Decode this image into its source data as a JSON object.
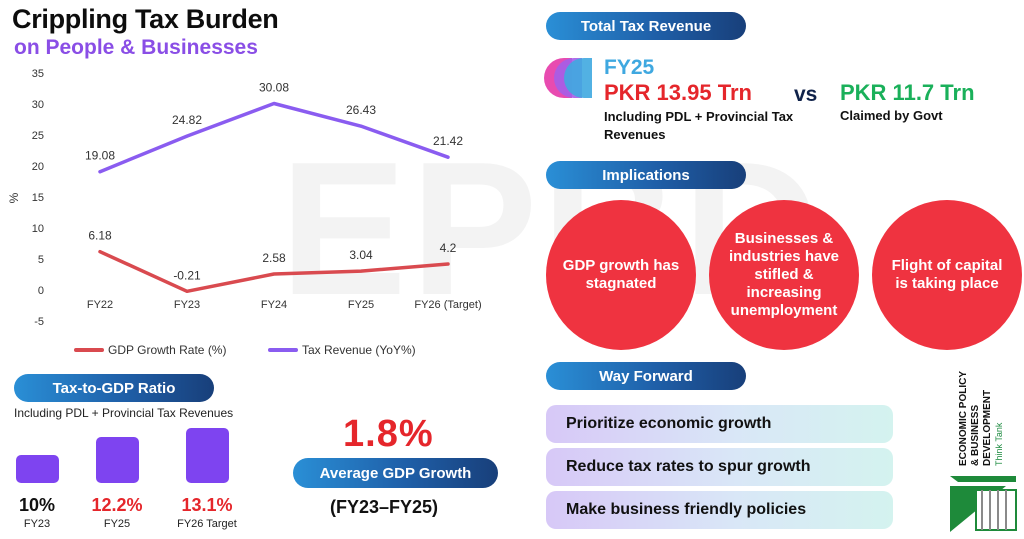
{
  "header": {
    "title": "Crippling Tax Burden",
    "subtitle": "on People & Businesses"
  },
  "watermark": "EPBD",
  "chart_data": {
    "type": "line",
    "categories": [
      "FY22",
      "FY23",
      "FY24",
      "FY25",
      "FY26 (Target)"
    ],
    "series": [
      {
        "name": "GDP Growth Rate (%)",
        "color": "#d94a4f",
        "values": [
          6.18,
          -0.21,
          2.58,
          3.04,
          4.2
        ],
        "labels": [
          "6.18",
          "-0.21",
          "2.58",
          "3.04",
          "4.2"
        ]
      },
      {
        "name": "Tax Revenue (YoY%)",
        "color": "#8a5cf0",
        "values": [
          19.08,
          24.82,
          30.08,
          26.43,
          21.42
        ],
        "labels": [
          "19.08",
          "24.82",
          "30.08",
          "26.43",
          "21.42"
        ]
      }
    ],
    "ylabel": "%",
    "ylim": [
      -5,
      35
    ],
    "yticks": [
      35,
      30,
      25,
      20,
      15,
      10,
      5,
      0,
      -5
    ],
    "legend": "bottom"
  },
  "tax_to_gdp": {
    "title": "Tax-to-GDP Ratio",
    "note": "Including PDL + Provincial Tax Revenues",
    "items": [
      {
        "value": "10%",
        "ratio": 10,
        "label": "FY23",
        "color": "#111111"
      },
      {
        "value": "12.2%",
        "ratio": 12.2,
        "label": "FY25",
        "color": "#e5262b"
      },
      {
        "value": "13.1%",
        "ratio": 13.1,
        "label": "FY26 Target",
        "color": "#e5262b"
      }
    ]
  },
  "avg_growth": {
    "value": "1.8%",
    "label": "Average GDP Growth",
    "period": "(FY23–FY25)"
  },
  "total_revenue": {
    "title": "Total Tax Revenue",
    "fy": "FY25",
    "amount": "PKR 13.95 Trn",
    "note": "Including PDL + Provincial Tax Revenues",
    "vs": "vs",
    "claimed_amount": "PKR 11.7 Trn",
    "claimed_note": "Claimed by Govt"
  },
  "implications": {
    "title": "Implications",
    "items": [
      "GDP growth has stagnated",
      "Businesses & industries have stifled & increasing unemployment",
      "Flight of capital is taking place"
    ]
  },
  "way_forward": {
    "title": "Way Forward",
    "items": [
      "Prioritize economic growth",
      "Reduce tax rates to spur growth",
      "Make business friendly policies"
    ]
  },
  "logo": {
    "org_line1": "ECONOMIC POLICY",
    "org_line2": "& BUSINESS",
    "org_line3": "DEVELOPMENT",
    "tagline": "Think Tank"
  }
}
